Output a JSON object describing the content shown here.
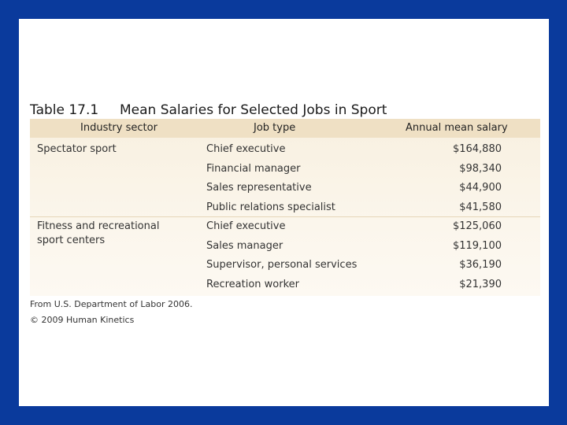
{
  "table": {
    "number": "Table 17.1",
    "title": "Mean Salaries for Selected Jobs in Sport",
    "headers": [
      "Industry sector",
      "Job type",
      "Annual mean salary"
    ],
    "groups": [
      {
        "sector": "Spectator sport",
        "rows": [
          {
            "job": "Chief executive",
            "salary": "$164,880"
          },
          {
            "job": "Financial manager",
            "salary": "$98,340"
          },
          {
            "job": "Sales representative",
            "salary": "$44,900"
          },
          {
            "job": "Public relations specialist",
            "salary": "$41,580"
          }
        ]
      },
      {
        "sector": "Fitness and recreational sport centers",
        "rows": [
          {
            "job": "Chief executive",
            "salary": "$125,060"
          },
          {
            "job": "Sales manager",
            "salary": "$119,100"
          },
          {
            "job": "Supervisor, personal services",
            "salary": "$36,190"
          },
          {
            "job": "Recreation worker",
            "salary": "$21,390"
          }
        ]
      }
    ]
  },
  "footnotes": {
    "source": "From U.S. Department of Labor 2006.",
    "copyright": "© 2009 Human Kinetics"
  }
}
